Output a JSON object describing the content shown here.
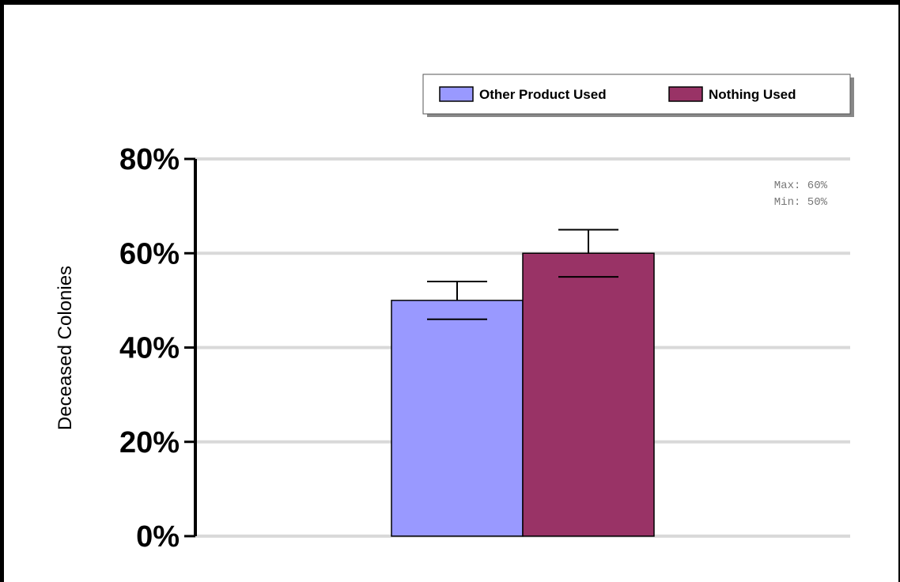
{
  "chart_data": {
    "type": "bar",
    "categories": [
      ""
    ],
    "series": [
      {
        "name": "Other Product Used",
        "values": [
          50
        ],
        "error_low": [
          46
        ],
        "error_high": [
          54
        ],
        "color": "#9999ff"
      },
      {
        "name": "Nothing Used",
        "values": [
          60
        ],
        "error_low": [
          55
        ],
        "error_high": [
          65
        ],
        "color": "#993366"
      }
    ],
    "title": "",
    "xlabel": "",
    "ylabel": "Deceased Colonies",
    "ylim": [
      0,
      80
    ],
    "yticks": [
      "0%",
      "20%",
      "40%",
      "60%",
      "80%"
    ],
    "ytick_values": [
      0,
      20,
      40,
      60,
      80
    ],
    "grid": true,
    "legend_position": "top-right",
    "annotations": {
      "max": "Max: 60%",
      "min": "Min: 50%"
    }
  }
}
